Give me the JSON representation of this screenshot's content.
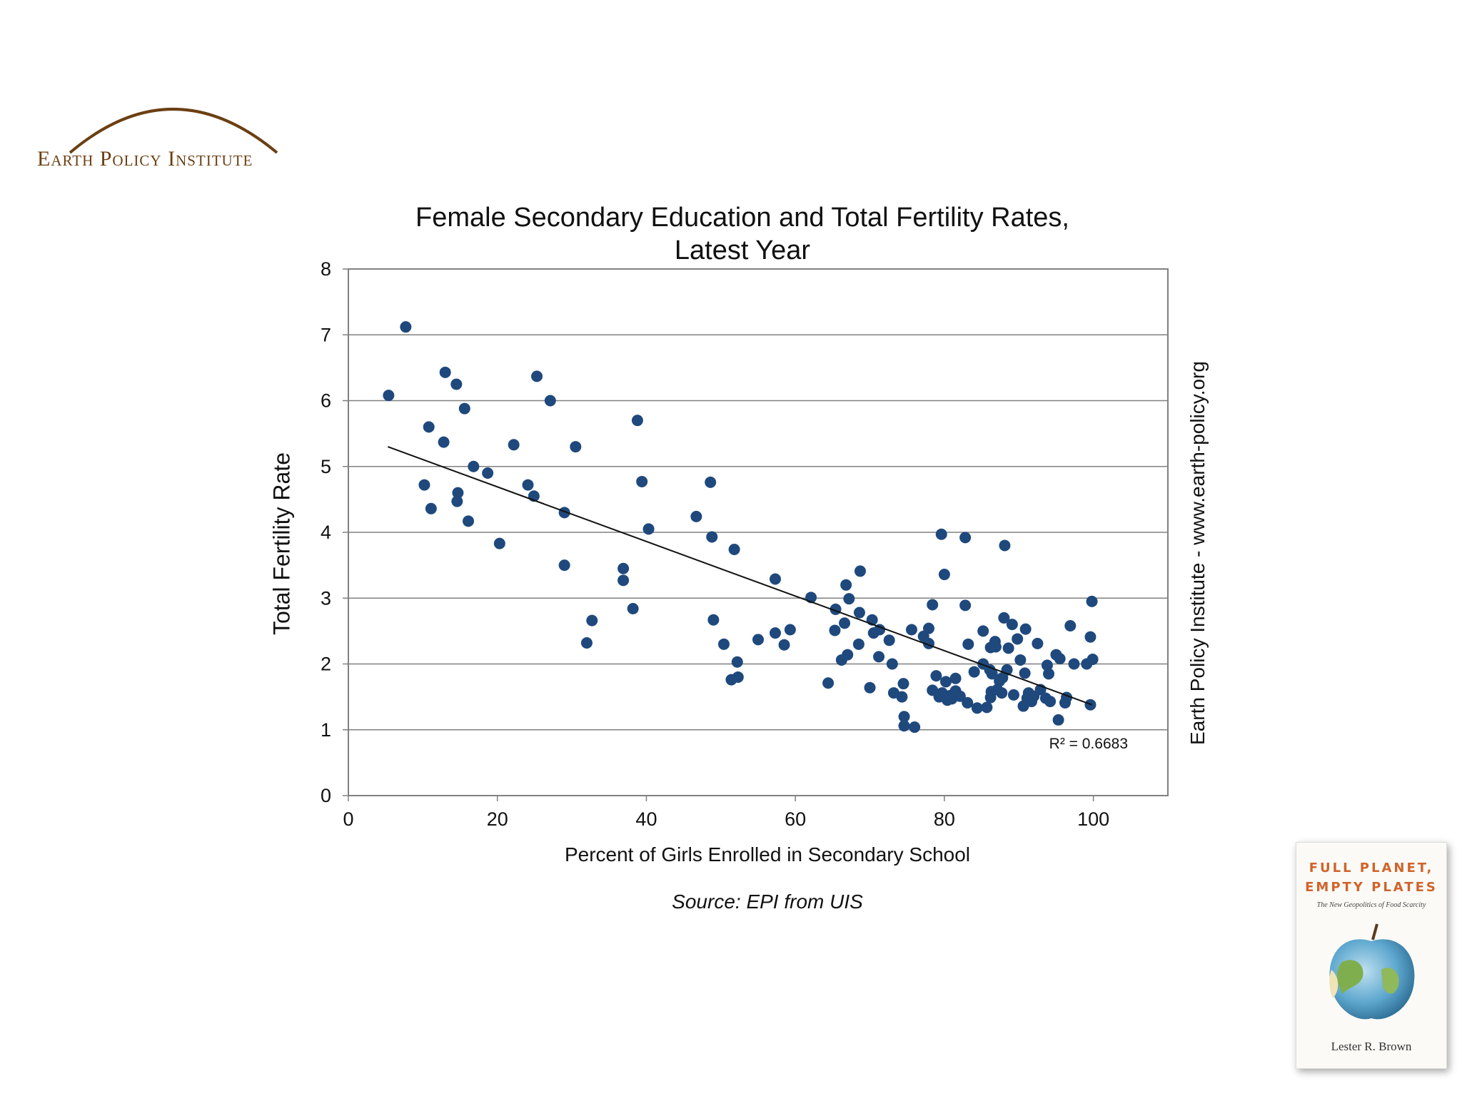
{
  "logo": {
    "text": "Earth Policy Institute",
    "arc_color": "#6b3f12"
  },
  "side_credit": "Earth Policy Institute - www.earth-policy.org",
  "source": "Source: EPI from UIS",
  "book": {
    "title_line1": "FULL PLANET,",
    "title_line2": "EMPTY PLATES",
    "subtitle": "The New Geopolitics of Food Scarcity",
    "author": "Lester R. Brown"
  },
  "chart_data": {
    "type": "scatter",
    "title_line1": "Female Secondary Education and Total Fertility Rates,",
    "title_line2": "Latest Year",
    "xlabel": "Percent of Girls Enrolled in Secondary School",
    "ylabel": "Total Fertility Rate",
    "xlim": [
      0,
      110
    ],
    "ylim": [
      0,
      8
    ],
    "xticks": [
      0,
      20,
      40,
      60,
      80,
      100
    ],
    "yticks": [
      0,
      1,
      2,
      3,
      4,
      5,
      6,
      7,
      8
    ],
    "grid": "horizontal",
    "marker_color": "#1f497d",
    "trendline": {
      "x": [
        5.3,
        99.8
      ],
      "y": [
        5.3,
        1.38
      ],
      "label": "R² = 0.6683",
      "color": "#111111"
    },
    "points": [
      [
        5.4,
        6.08
      ],
      [
        7.7,
        7.12
      ],
      [
        10.2,
        4.72
      ],
      [
        10.8,
        5.6
      ],
      [
        11.1,
        4.36
      ],
      [
        12.8,
        5.37
      ],
      [
        13,
        6.43
      ],
      [
        14.5,
        6.25
      ],
      [
        14.7,
        4.6
      ],
      [
        14.6,
        4.47
      ],
      [
        15.6,
        5.88
      ],
      [
        16.1,
        4.17
      ],
      [
        16.8,
        5
      ],
      [
        18.7,
        4.9
      ],
      [
        20.3,
        3.83
      ],
      [
        22.2,
        5.33
      ],
      [
        24.1,
        4.72
      ],
      [
        24.9,
        4.55
      ],
      [
        25.3,
        6.37
      ],
      [
        27.1,
        6
      ],
      [
        29,
        4.3
      ],
      [
        29,
        3.5
      ],
      [
        30.5,
        5.3
      ],
      [
        32,
        2.32
      ],
      [
        32.7,
        2.66
      ],
      [
        36.9,
        3.45
      ],
      [
        36.9,
        3.27
      ],
      [
        38.2,
        2.84
      ],
      [
        38.8,
        5.7
      ],
      [
        39.4,
        4.77
      ],
      [
        40.3,
        4.05
      ],
      [
        46.7,
        4.24
      ],
      [
        48.6,
        4.76
      ],
      [
        48.8,
        3.93
      ],
      [
        49,
        2.67
      ],
      [
        50.4,
        2.3
      ],
      [
        51.4,
        1.76
      ],
      [
        51.8,
        3.74
      ],
      [
        52.2,
        2.03
      ],
      [
        52.3,
        1.8
      ],
      [
        55,
        2.37
      ],
      [
        57.3,
        3.29
      ],
      [
        57.3,
        2.47
      ],
      [
        58.5,
        2.29
      ],
      [
        59.3,
        2.52
      ],
      [
        62.1,
        3.01
      ],
      [
        64.4,
        1.71
      ],
      [
        65.3,
        2.51
      ],
      [
        65.4,
        2.83
      ],
      [
        66.2,
        2.06
      ],
      [
        66.6,
        2.62
      ],
      [
        66.8,
        3.2
      ],
      [
        67,
        2.14
      ],
      [
        67.2,
        2.99
      ],
      [
        68.5,
        2.3
      ],
      [
        68.6,
        2.78
      ],
      [
        68.7,
        3.41
      ],
      [
        70,
        1.64
      ],
      [
        70.3,
        2.67
      ],
      [
        70.5,
        2.47
      ],
      [
        71.2,
        2.11
      ],
      [
        71.3,
        2.52
      ],
      [
        72.6,
        2.36
      ],
      [
        73,
        2
      ],
      [
        73.2,
        1.56
      ],
      [
        74.3,
        1.5
      ],
      [
        74.5,
        1.7
      ],
      [
        74.6,
        1.2
      ],
      [
        74.6,
        1.06
      ],
      [
        75.6,
        2.52
      ],
      [
        76,
        1.04
      ],
      [
        77.2,
        2.42
      ],
      [
        77.9,
        2.31
      ],
      [
        77.9,
        2.54
      ],
      [
        78.4,
        1.6
      ],
      [
        78.4,
        2.9
      ],
      [
        78.9,
        1.82
      ],
      [
        79.3,
        1.5
      ],
      [
        79.6,
        3.97
      ],
      [
        79.7,
        1.56
      ],
      [
        80,
        3.36
      ],
      [
        80.2,
        1.73
      ],
      [
        80.4,
        1.45
      ],
      [
        80.8,
        1.52
      ],
      [
        81,
        1.47
      ],
      [
        81.5,
        1.59
      ],
      [
        81.5,
        1.78
      ],
      [
        82.1,
        1.51
      ],
      [
        82.8,
        3.92
      ],
      [
        82.8,
        2.89
      ],
      [
        83.1,
        1.41
      ],
      [
        83.2,
        2.3
      ],
      [
        84,
        1.88
      ],
      [
        84.4,
        1.33
      ],
      [
        85.2,
        2.5
      ],
      [
        85.2,
        2
      ],
      [
        85.7,
        1.34
      ],
      [
        86.1,
        1.91
      ],
      [
        86.2,
        1.49
      ],
      [
        86.2,
        2.25
      ],
      [
        86.3,
        1.58
      ],
      [
        86.4,
        1.85
      ],
      [
        86.8,
        2.34
      ],
      [
        86.9,
        2.26
      ],
      [
        87.1,
        1.61
      ],
      [
        87.4,
        1.74
      ],
      [
        87.7,
        1.56
      ],
      [
        87.8,
        1.79
      ],
      [
        88,
        2.7
      ],
      [
        88.1,
        3.8
      ],
      [
        88.4,
        1.91
      ],
      [
        88.6,
        2.24
      ],
      [
        89.1,
        2.6
      ],
      [
        89.3,
        1.53
      ],
      [
        89.8,
        2.38
      ],
      [
        90.2,
        2.06
      ],
      [
        90.6,
        1.36
      ],
      [
        90.8,
        1.86
      ],
      [
        90.9,
        2.53
      ],
      [
        91.1,
        1.48
      ],
      [
        91.3,
        1.56
      ],
      [
        91.7,
        1.43
      ],
      [
        92,
        1.51
      ],
      [
        92.5,
        2.31
      ],
      [
        92.9,
        1.61
      ],
      [
        93.6,
        1.48
      ],
      [
        93.8,
        1.98
      ],
      [
        94,
        1.85
      ],
      [
        94.2,
        1.43
      ],
      [
        95,
        2.14
      ],
      [
        95.3,
        1.15
      ],
      [
        95.5,
        2.08
      ],
      [
        96.2,
        1.41
      ],
      [
        96.4,
        1.49
      ],
      [
        96.9,
        2.58
      ],
      [
        97.4,
        2
      ],
      [
        99.1,
        2
      ],
      [
        99.6,
        2.41
      ],
      [
        99.6,
        1.38
      ],
      [
        99.8,
        2.95
      ],
      [
        99.9,
        2.07
      ]
    ]
  }
}
